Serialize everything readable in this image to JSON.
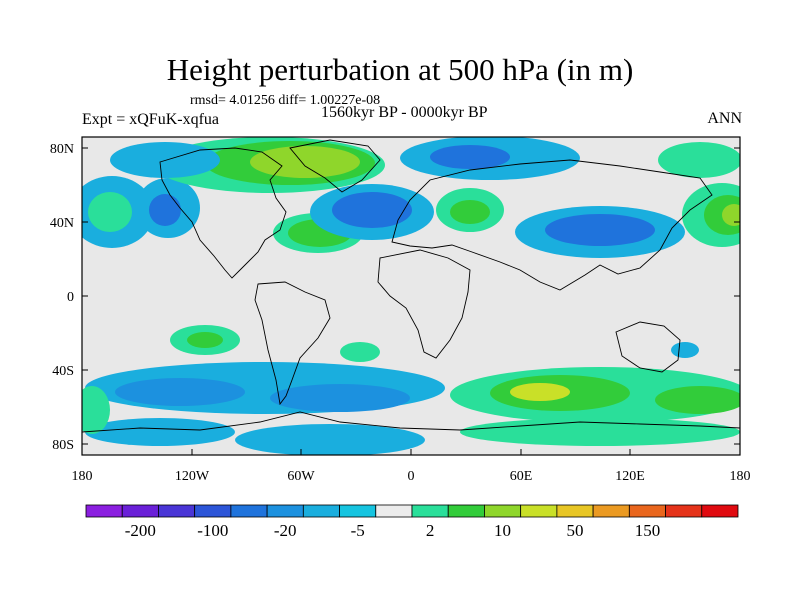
{
  "title": "Height perturbation at 500 hPa (in m)",
  "stats_line": "rmsd= 4.01256  diff= 1.00227e-08",
  "experiment": "Expt = xQFuK-xqfua",
  "period": "1560kyr BP - 0000kyr BP",
  "season": "ANN",
  "lat_labels": [
    "80N",
    "40N",
    "0",
    "40S",
    "80S"
  ],
  "lon_labels": [
    "180",
    "120W",
    "60W",
    "0",
    "60E",
    "120E",
    "180"
  ],
  "colorbar": {
    "colors": [
      "#8b1fe0",
      "#6a20d8",
      "#4a35d6",
      "#2c55d8",
      "#1f73dc",
      "#1c91df",
      "#1aaede",
      "#16c4e0",
      "#ececec",
      "#2adf9a",
      "#32cc3a",
      "#8fd62b",
      "#c9e028",
      "#e8c625",
      "#eb9a22",
      "#e9661d",
      "#e5331a",
      "#e00a10"
    ],
    "labels": [
      "-200",
      "-100",
      "-20",
      "-5",
      "2",
      "10",
      "50",
      "150"
    ]
  }
}
